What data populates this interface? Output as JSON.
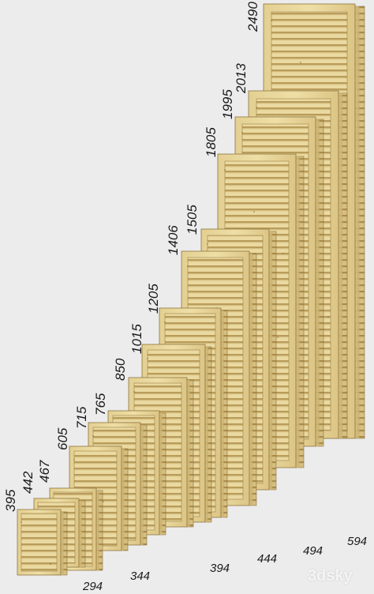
{
  "heights": [
    "395",
    "442",
    "467",
    "605",
    "715",
    "765",
    "850",
    "1015",
    "1205",
    "1406",
    "1505",
    "1805",
    "1995",
    "2013",
    "2490"
  ],
  "widths": [
    "294",
    "344",
    "394",
    "444",
    "494",
    "594"
  ],
  "watermark": "3dsky",
  "colors": {
    "background": "#ececec",
    "wood_light": "#ecdca0",
    "wood_mid": "#ddc888",
    "wood_dark": "#b89a58",
    "edge": "#8e7440"
  }
}
